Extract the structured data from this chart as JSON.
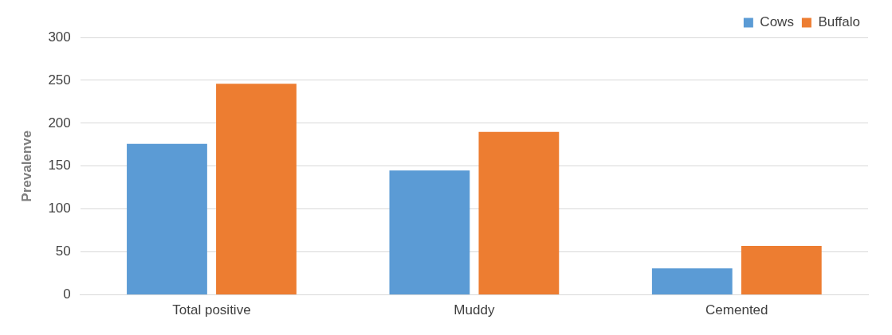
{
  "chart_data": {
    "type": "bar",
    "ylabel": "Prevalenve",
    "categories": [
      "Total positive",
      "Muddy",
      "Cemented"
    ],
    "series": [
      {
        "name": "Cows",
        "color": "#5b9bd5",
        "values": [
          176,
          145,
          31
        ]
      },
      {
        "name": "Buffalo",
        "color": "#ed7d31",
        "values": [
          246,
          190,
          57
        ]
      }
    ],
    "ylim": [
      0,
      300
    ],
    "yticks": [
      0,
      50,
      100,
      150,
      200,
      250,
      300
    ],
    "grid": "y",
    "legend": "top right"
  }
}
